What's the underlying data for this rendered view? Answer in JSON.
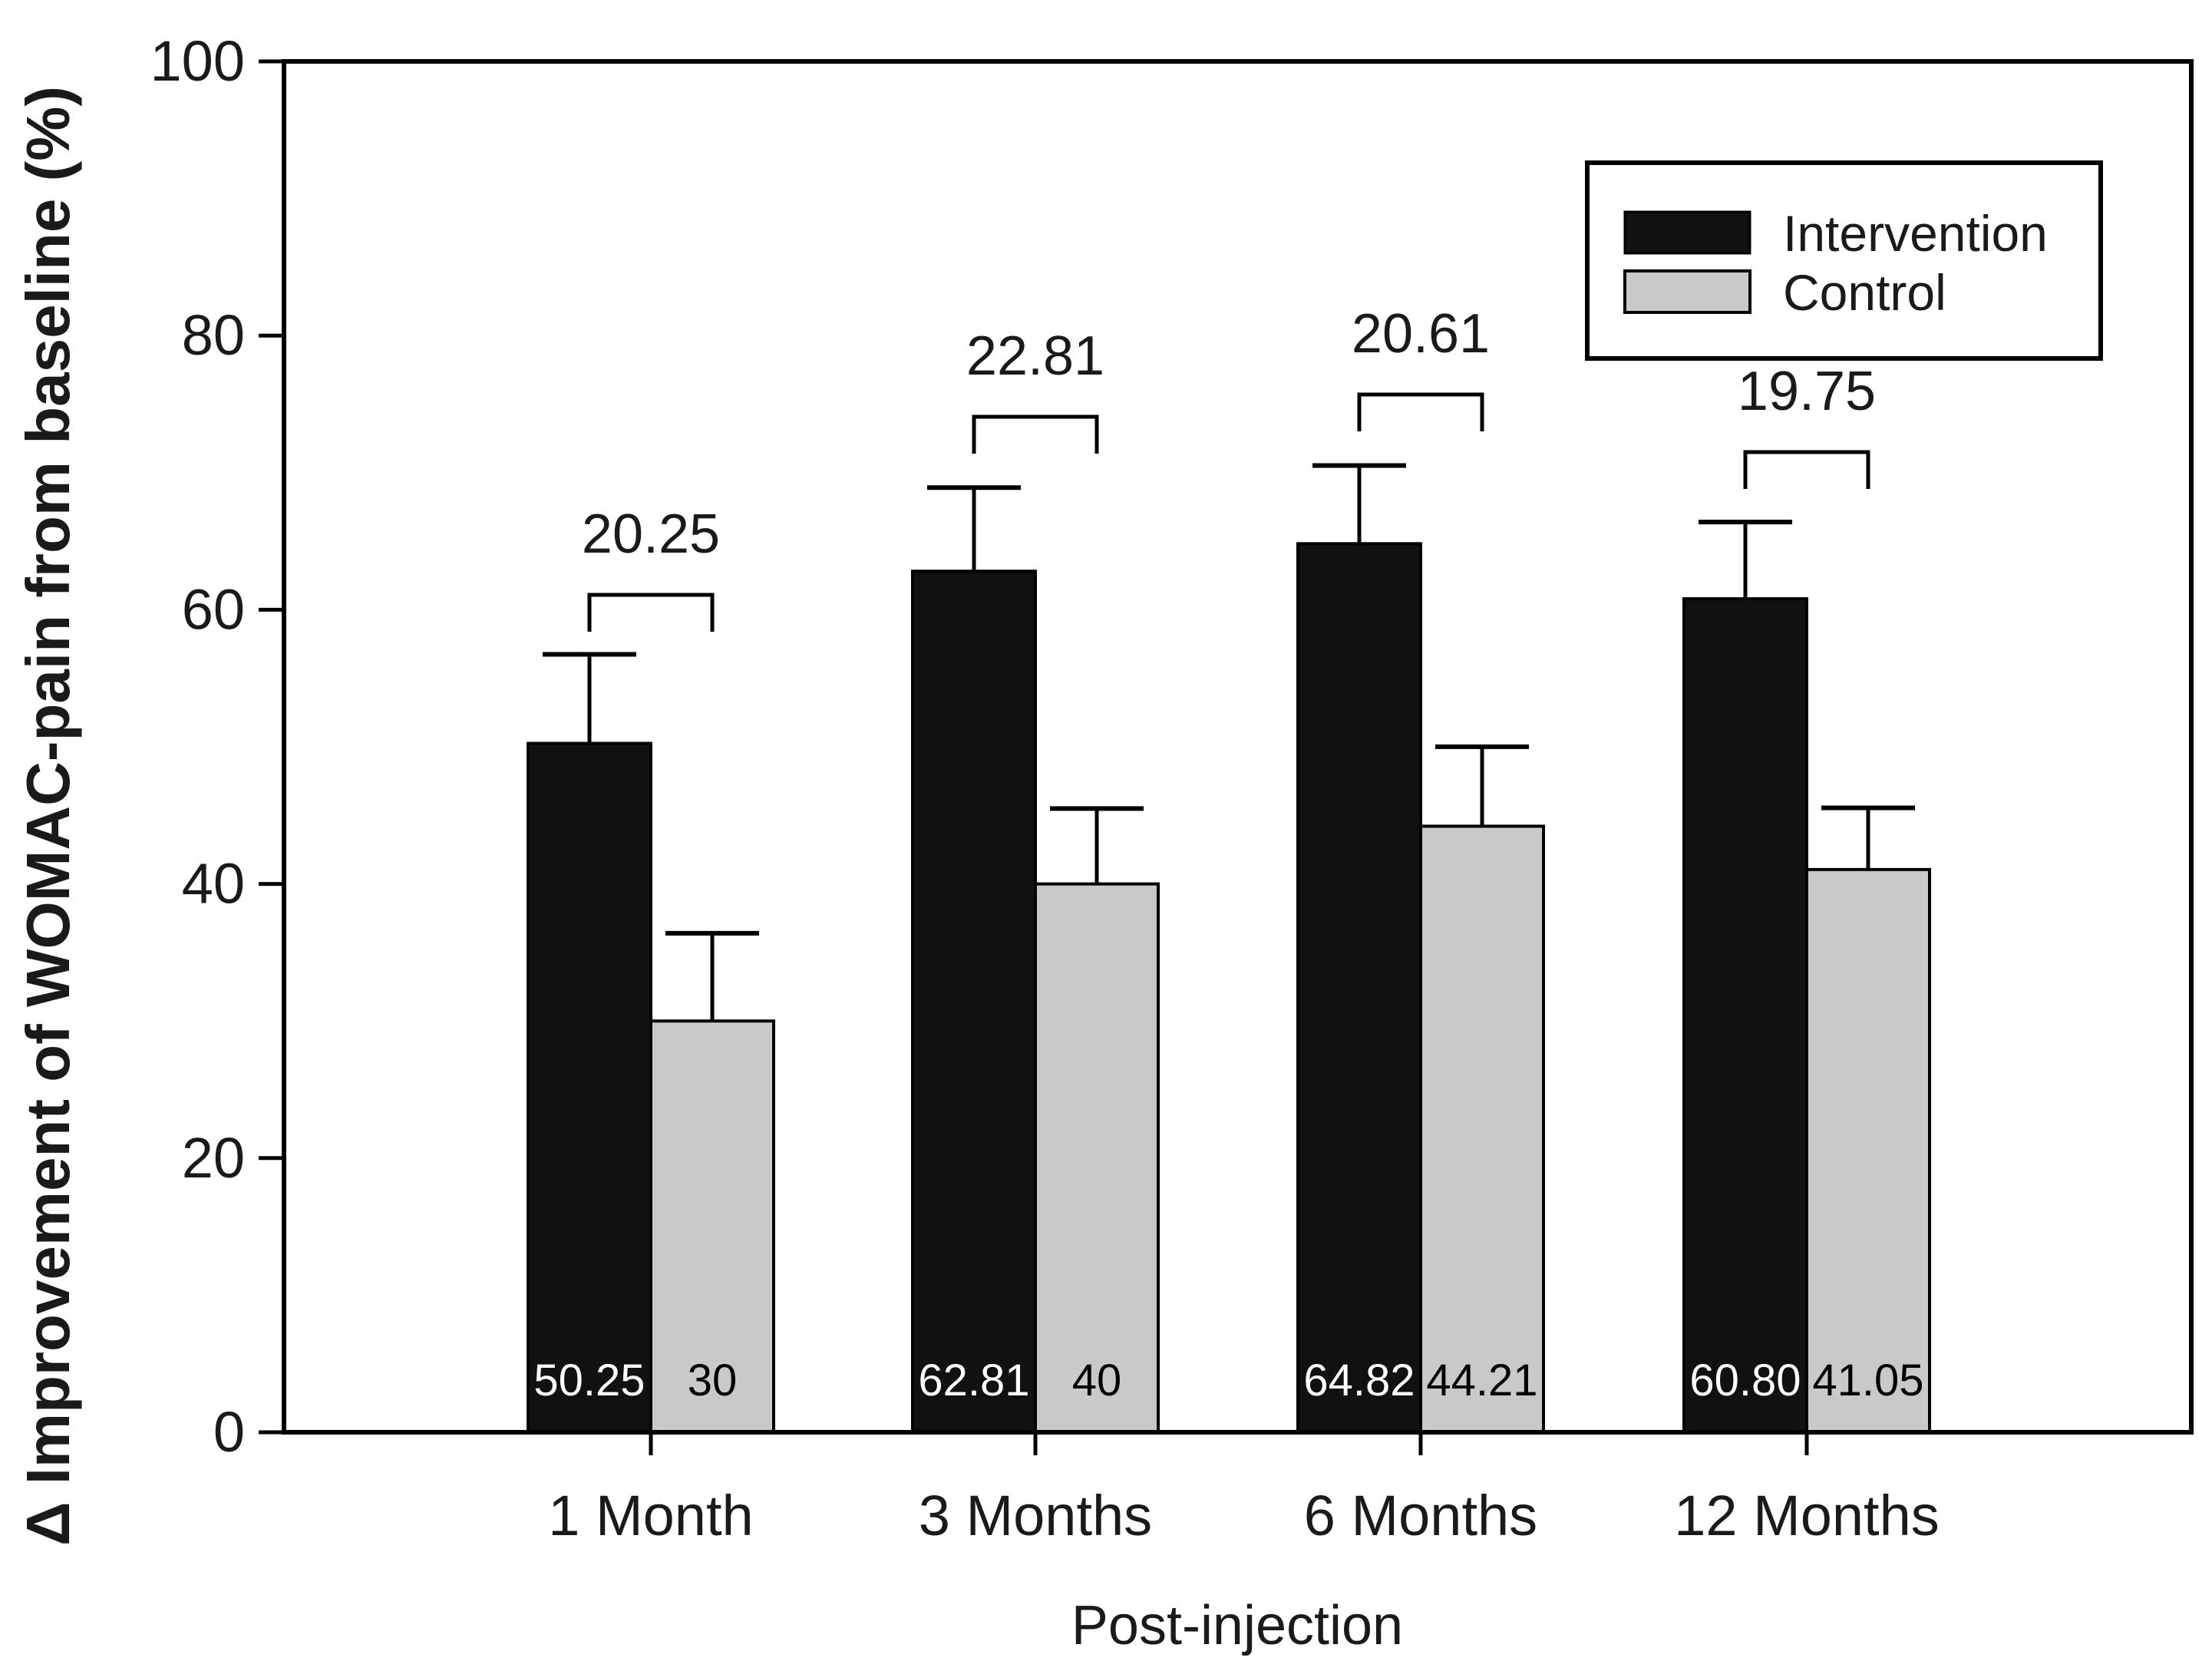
{
  "figure": {
    "background": "#ffffff",
    "axis_color": "#000000",
    "text_color": "#1a1a1a"
  },
  "chart_data": {
    "type": "bar",
    "title": "",
    "xlabel": "Post-injection",
    "ylabel": "Δ Improvement of WOMAC-pain from baseline (%)",
    "categories": [
      "1 Month",
      "3 Months",
      "6 Months",
      "12 Months"
    ],
    "ylim": [
      0,
      100
    ],
    "yticks": [
      0,
      20,
      40,
      60,
      80,
      100
    ],
    "grid": false,
    "legend_position": "top-right",
    "series": [
      {
        "name": "Intervention",
        "color": "#111111",
        "label_color": "#ffffff",
        "values": [
          50.25,
          62.81,
          64.82,
          60.8
        ],
        "value_labels": [
          "50.25",
          "62.81",
          "64.82",
          "60.80"
        ],
        "upper_errors": [
          6.5,
          6.1,
          5.7,
          5.6
        ]
      },
      {
        "name": "Control",
        "color": "#c9c9c9",
        "label_color": "#000000",
        "values": [
          30,
          40,
          44.21,
          41.05
        ],
        "value_labels": [
          "30",
          "40",
          "44.21",
          "41.05"
        ],
        "upper_errors": [
          6.4,
          5.5,
          5.8,
          4.5
        ]
      }
    ],
    "difference_annotations": [
      "20.25",
      "22.81",
      "20.61",
      "19.75"
    ]
  }
}
